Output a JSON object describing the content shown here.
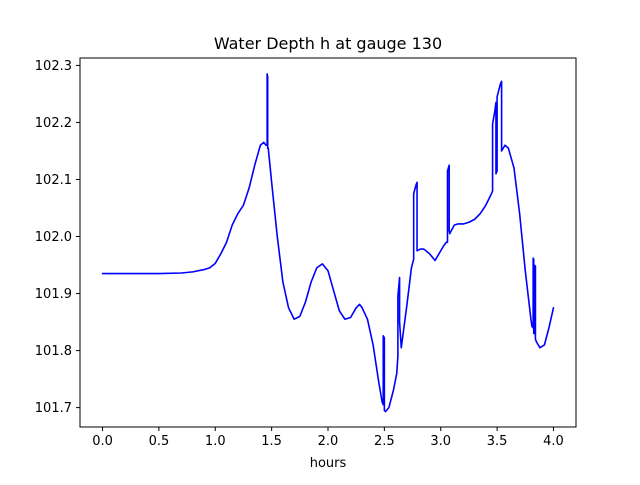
{
  "chart_data": {
    "type": "line",
    "title": "Water Depth h at gauge 130",
    "xlabel": "hours",
    "ylabel": "",
    "xlim": [
      -0.2,
      4.2
    ],
    "ylim": [
      101.666,
      102.313
    ],
    "xticks": [
      "0.0",
      "0.5",
      "1.0",
      "1.5",
      "2.0",
      "2.5",
      "3.0",
      "3.5",
      "4.0"
    ],
    "yticks": [
      "101.7",
      "101.8",
      "101.9",
      "102.0",
      "102.1",
      "102.2",
      "102.3"
    ],
    "grid": false,
    "series": [
      {
        "color": "#0000ff",
        "x": [
          0.0,
          0.25,
          0.5,
          0.7,
          0.8,
          0.9,
          0.95,
          1.0,
          1.05,
          1.1,
          1.15,
          1.2,
          1.25,
          1.3,
          1.35,
          1.4,
          1.43,
          1.45,
          1.46,
          1.46,
          1.465,
          1.465,
          1.47,
          1.5,
          1.55,
          1.6,
          1.65,
          1.7,
          1.75,
          1.8,
          1.85,
          1.9,
          1.95,
          2.0,
          2.05,
          2.1,
          2.15,
          2.2,
          2.25,
          2.28,
          2.3,
          2.35,
          2.4,
          2.45,
          2.48,
          2.49,
          2.49,
          2.5,
          2.5,
          2.51,
          2.54,
          2.58,
          2.61,
          2.62,
          2.62,
          2.635,
          2.635,
          2.65,
          2.7,
          2.74,
          2.76,
          2.76,
          2.78,
          2.79,
          2.79,
          2.82,
          2.85,
          2.9,
          2.95,
          3.0,
          3.03,
          3.05,
          3.06,
          3.06,
          3.075,
          3.075,
          3.08,
          3.12,
          3.15,
          3.2,
          3.25,
          3.3,
          3.35,
          3.4,
          3.45,
          3.46,
          3.46,
          3.48,
          3.49,
          3.49,
          3.5,
          3.5,
          3.53,
          3.54,
          3.54,
          3.57,
          3.6,
          3.65,
          3.7,
          3.75,
          3.8,
          3.81,
          3.82,
          3.82,
          3.825,
          3.825,
          3.83,
          3.83,
          3.84,
          3.84,
          3.85,
          3.88,
          3.92,
          3.96,
          4.0
        ],
        "y": [
          101.935,
          101.935,
          101.935,
          101.936,
          101.938,
          101.942,
          101.945,
          101.953,
          101.97,
          101.99,
          102.02,
          102.04,
          102.055,
          102.085,
          102.125,
          102.16,
          102.165,
          102.16,
          102.16,
          102.285,
          102.28,
          102.155,
          102.155,
          102.095,
          102.0,
          101.92,
          101.875,
          101.855,
          101.86,
          101.885,
          101.92,
          101.945,
          101.952,
          101.94,
          101.905,
          101.87,
          101.855,
          101.858,
          101.875,
          101.881,
          101.876,
          101.855,
          101.81,
          101.745,
          101.71,
          101.705,
          101.826,
          101.822,
          101.695,
          101.693,
          101.7,
          101.73,
          101.76,
          101.79,
          101.895,
          101.928,
          101.85,
          101.805,
          101.88,
          101.945,
          101.96,
          102.075,
          102.09,
          102.095,
          101.975,
          101.978,
          101.978,
          101.97,
          101.958,
          101.975,
          101.985,
          101.99,
          101.99,
          102.115,
          102.125,
          102.01,
          102.005,
          102.02,
          102.022,
          102.022,
          102.025,
          102.03,
          102.04,
          102.055,
          102.075,
          102.08,
          102.197,
          102.22,
          102.235,
          102.11,
          102.115,
          102.245,
          102.268,
          102.272,
          102.15,
          102.16,
          102.155,
          102.12,
          102.04,
          101.94,
          101.855,
          101.842,
          101.84,
          101.962,
          101.96,
          101.83,
          101.83,
          101.95,
          101.948,
          101.82,
          101.815,
          101.805,
          101.81,
          101.84,
          101.875
        ]
      }
    ]
  }
}
